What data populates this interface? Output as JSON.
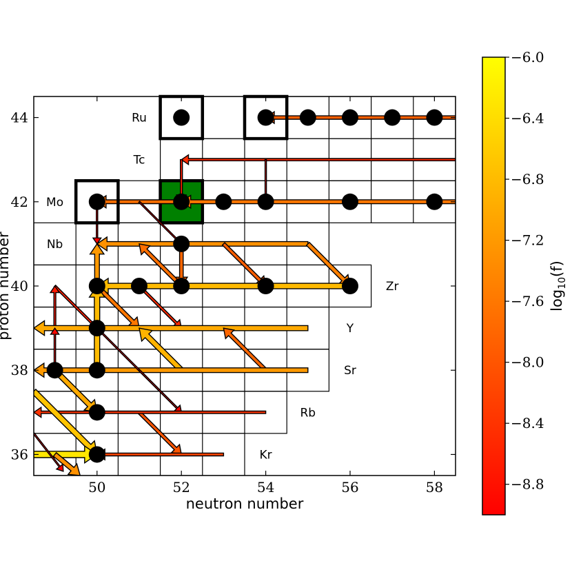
{
  "chart_data": {
    "type": "nuclide-flow-chart",
    "xlabel": "neutron number",
    "ylabel": "proton number",
    "xlim": [
      48.5,
      58.5
    ],
    "ylim": [
      35.5,
      44.5
    ],
    "xticks": [
      "50",
      "52",
      "54",
      "56",
      "58"
    ],
    "yticks": [
      "36",
      "38",
      "40",
      "42",
      "44"
    ],
    "colorbar": {
      "label": "log",
      "label_sub": "10",
      "label_suffix": "(f)",
      "range": [
        -9.0,
        -6.0
      ],
      "ticks": [
        "−6.0",
        "−6.4",
        "−6.8",
        "−7.2",
        "−7.6",
        "−8.0",
        "−8.4",
        "−8.8"
      ],
      "tick_values": [
        -6.0,
        -6.4,
        -6.8,
        -7.2,
        -7.6,
        -8.0,
        -8.4,
        -8.8
      ],
      "colors": [
        "#ff0000",
        "#ff8000",
        "#ffff00"
      ]
    },
    "element_labels": [
      {
        "text": "Ru",
        "n": 51,
        "z": 44
      },
      {
        "text": "Tc",
        "n": 51,
        "z": 43
      },
      {
        "text": "Mo",
        "n": 49,
        "z": 42
      },
      {
        "text": "Nb",
        "n": 49,
        "z": 41
      },
      {
        "text": "Zr",
        "n": 57,
        "z": 40
      },
      {
        "text": "Y",
        "n": 56,
        "z": 39
      },
      {
        "text": "Sr",
        "n": 56,
        "z": 38
      },
      {
        "text": "Rb",
        "n": 55,
        "z": 37
      },
      {
        "text": "Kr",
        "n": 54,
        "z": 36
      }
    ],
    "rows": [
      {
        "z": 44,
        "n_min": 51.5,
        "n_max": 58.5
      },
      {
        "z": 43,
        "n_min": 51.5,
        "n_max": 58.5
      },
      {
        "z": 42,
        "n_min": 49.5,
        "n_max": 58.5
      },
      {
        "z": 41,
        "n_min": 48.5,
        "n_max": 55.5
      },
      {
        "z": 40,
        "n_min": 48.5,
        "n_max": 56.5
      },
      {
        "z": 39,
        "n_min": 48.5,
        "n_max": 55.5
      },
      {
        "z": 38,
        "n_min": 48.5,
        "n_max": 55.5
      },
      {
        "z": 37,
        "n_min": 48.5,
        "n_max": 54.5
      },
      {
        "z": 36,
        "n_min": 48.5,
        "n_max": 53.5
      }
    ],
    "stable_nuclei": [
      [
        52,
        44
      ],
      [
        54,
        44
      ],
      [
        55,
        44
      ],
      [
        56,
        44
      ],
      [
        57,
        44
      ],
      [
        58,
        44
      ],
      [
        50,
        42
      ],
      [
        52,
        42
      ],
      [
        53,
        42
      ],
      [
        54,
        42
      ],
      [
        56,
        42
      ],
      [
        58,
        42
      ],
      [
        52,
        41
      ],
      [
        50,
        40
      ],
      [
        51,
        40
      ],
      [
        52,
        40
      ],
      [
        54,
        40
      ],
      [
        56,
        40
      ],
      [
        50,
        39
      ],
      [
        49,
        38
      ],
      [
        50,
        38
      ],
      [
        50,
        37
      ],
      [
        50,
        36
      ]
    ],
    "boxed_nuclei": [
      [
        52,
        44
      ],
      [
        54,
        44
      ],
      [
        50,
        42
      ]
    ],
    "seed_nucleus": [
      52,
      42
    ],
    "seed_color": "#008000",
    "flows": [
      {
        "from": [
          58.5,
          44
        ],
        "to": [
          54,
          44
        ],
        "v": -7.9
      },
      {
        "from": [
          58.5,
          43
        ],
        "to": [
          52,
          43
        ],
        "v": -8.5
      },
      {
        "from": [
          54,
          43
        ],
        "to": [
          54,
          42
        ],
        "v": -9.0
      },
      {
        "from": [
          52,
          43
        ],
        "to": [
          52,
          42
        ],
        "v": -8.6
      },
      {
        "from": [
          58.5,
          42
        ],
        "to": [
          52,
          42
        ],
        "v": -7.6
      },
      {
        "from": [
          52,
          42
        ],
        "to": [
          50,
          42
        ],
        "v": -7.7
      },
      {
        "from": [
          51,
          42
        ],
        "to": [
          52,
          41
        ],
        "v": -9.0
      },
      {
        "from": [
          50,
          42
        ],
        "to": [
          50,
          41
        ],
        "v": -9.0
      },
      {
        "from": [
          55,
          41
        ],
        "to": [
          50,
          41
        ],
        "v": -7.3
      },
      {
        "from": [
          55,
          41
        ],
        "to": [
          56,
          40
        ],
        "v": -7.5
      },
      {
        "from": [
          52,
          41
        ],
        "to": [
          52,
          40
        ],
        "v": -7.8
      },
      {
        "from": [
          52,
          40
        ],
        "to": [
          51,
          41
        ],
        "v": -7.7
      },
      {
        "from": [
          53,
          41
        ],
        "to": [
          54,
          40
        ],
        "v": -7.9
      },
      {
        "from": [
          56,
          40
        ],
        "to": [
          50,
          40
        ],
        "v": -6.8
      },
      {
        "from": [
          50,
          40
        ],
        "to": [
          50,
          41
        ],
        "v": -7.2
      },
      {
        "from": [
          50,
          40
        ],
        "to": [
          51,
          39
        ],
        "v": -7.6
      },
      {
        "from": [
          49,
          40
        ],
        "to": [
          50,
          39
        ],
        "v": -8.6
      },
      {
        "from": [
          51,
          40
        ],
        "to": [
          52,
          39
        ],
        "v": -8.5
      },
      {
        "from": [
          49,
          39
        ],
        "to": [
          49,
          40
        ],
        "v": -8.7
      },
      {
        "from": [
          55,
          39
        ],
        "to": [
          48.5,
          39
        ],
        "v": -7.0
      },
      {
        "from": [
          54,
          38
        ],
        "to": [
          53,
          39
        ],
        "v": -7.8
      },
      {
        "from": [
          52,
          38
        ],
        "to": [
          51,
          39
        ],
        "v": -6.9
      },
      {
        "from": [
          55,
          38
        ],
        "to": [
          48.5,
          38
        ],
        "v": -7.2
      },
      {
        "from": [
          50,
          38
        ],
        "to": [
          50,
          40
        ],
        "v": -6.8
      },
      {
        "from": [
          49,
          38
        ],
        "to": [
          49,
          39
        ],
        "v": -8.9
      },
      {
        "from": [
          49,
          38
        ],
        "to": [
          50,
          37
        ],
        "v": -7.0
      },
      {
        "from": [
          51,
          37
        ],
        "to": [
          52,
          36
        ],
        "v": -8.0
      },
      {
        "from": [
          50,
          39
        ],
        "to": [
          52,
          37
        ],
        "v": -9.0
      },
      {
        "from": [
          51,
          38
        ],
        "to": [
          52,
          37
        ],
        "v": -9.0
      },
      {
        "from": [
          54,
          37
        ],
        "to": [
          48.5,
          37
        ],
        "v": -8.4
      },
      {
        "from": [
          48.5,
          37.5
        ],
        "to": [
          50,
          36
        ],
        "v": -6.7
      },
      {
        "from": [
          48.5,
          36
        ],
        "to": [
          50,
          36
        ],
        "v": -6.3
      },
      {
        "from": [
          53,
          36
        ],
        "to": [
          50,
          36
        ],
        "v": -8.2
      },
      {
        "from": [
          48.5,
          36.5
        ],
        "to": [
          49.2,
          35.6
        ],
        "v": -9.0
      },
      {
        "from": [
          49,
          36
        ],
        "to": [
          49.6,
          35.5
        ],
        "v": -7.3
      }
    ]
  }
}
